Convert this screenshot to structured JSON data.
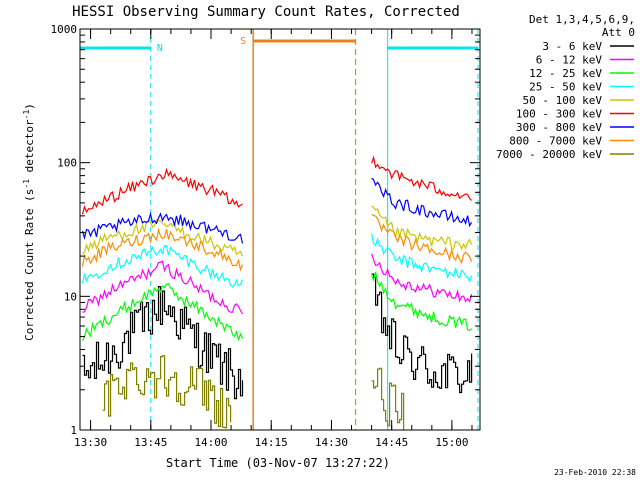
{
  "colors": {
    "background": "#ffffff",
    "axes": "#000000",
    "night_marker": "#00e5ee",
    "saa_marker": "#e8841a"
  },
  "chart_data": {
    "type": "line",
    "title": "HESSI Observing Summary Count Rates, Corrected",
    "xlabel": "Start Time (03-Nov-07 13:27:22)",
    "ylabel": "Corrected Count Rate (s",
    "ylabel_sup": "-1",
    "ylabel_mid": " detector",
    "ylabel_sup2": "-1",
    "ylabel_end": ")",
    "yscale": "log",
    "xlim": [
      "13:27:22",
      "15:07:00"
    ],
    "ylim": [
      1,
      1000
    ],
    "xticks": [
      "13:30",
      "13:45",
      "14:00",
      "14:15",
      "14:30",
      "14:45",
      "15:00"
    ],
    "yticks": [
      "1",
      "10",
      "100",
      "1000"
    ],
    "legend_title": "Det 1,3,4,5,6,9,",
    "legend_subtitle": "Att 0",
    "legend_position": "right",
    "timestamp": "23-Feb-2010 22:38",
    "annotations": {
      "night_label": "N",
      "saa_label": "S",
      "night_intervals": [
        [
          "13:27:22",
          "13:45:00"
        ],
        [
          "14:44:00",
          "15:06:30"
        ]
      ],
      "saa_interval": [
        "14:10:30",
        "14:36:00"
      ],
      "data_gap": [
        "14:09:30",
        "14:40:00"
      ]
    },
    "series": [
      {
        "name": "3 - 6 keV",
        "color": "#000000",
        "segments": [
          {
            "t": [
              "13:28",
              "13:35",
              "13:48",
              "14:00",
              "14:08"
            ],
            "v": [
              2.5,
              3.7,
              9,
              3.5,
              2.2
            ]
          },
          {
            "t": [
              "14:40",
              "14:46",
              "14:55",
              "15:05"
            ],
            "v": [
              10,
              4,
              2.7,
              2.5
            ]
          }
        ]
      },
      {
        "name": "6 - 12 keV",
        "color": "#ff00ff",
        "segments": [
          {
            "t": [
              "13:28",
              "13:35",
              "13:48",
              "14:00",
              "14:08"
            ],
            "v": [
              8,
              11,
              17,
              10,
              7.5
            ]
          },
          {
            "t": [
              "14:40",
              "14:46",
              "14:55",
              "15:05"
            ],
            "v": [
              20,
              13,
              11,
              9.5
            ]
          }
        ]
      },
      {
        "name": "12 - 25 keV",
        "color": "#00ff00",
        "segments": [
          {
            "t": [
              "13:28",
              "13:35",
              "13:48",
              "14:00",
              "14:08"
            ],
            "v": [
              5,
              7,
              12,
              7,
              4.7
            ]
          },
          {
            "t": [
              "14:40",
              "14:46",
              "14:55",
              "15:05"
            ],
            "v": [
              15,
              9,
              7,
              6
            ]
          }
        ]
      },
      {
        "name": "25 - 50 keV",
        "color": "#00ffff",
        "segments": [
          {
            "t": [
              "13:28",
              "13:35",
              "13:48",
              "14:00",
              "14:08"
            ],
            "v": [
              13,
              17,
              23,
              15,
              12
            ]
          },
          {
            "t": [
              "14:40",
              "14:46",
              "14:55",
              "15:05"
            ],
            "v": [
              27,
              19,
              16,
              14
            ]
          }
        ]
      },
      {
        "name": "50 - 100 keV",
        "color": "#c8c800",
        "segments": [
          {
            "t": [
              "13:28",
              "13:35",
              "13:48",
              "14:00",
              "14:08"
            ],
            "v": [
              22,
              28,
              35,
              25,
              20
            ]
          },
          {
            "t": [
              "14:40",
              "14:46",
              "14:55",
              "15:05"
            ],
            "v": [
              45,
              30,
              26,
              24
            ]
          }
        ]
      },
      {
        "name": "100 - 300 keV",
        "color": "#ff0000",
        "segments": [
          {
            "t": [
              "13:28",
              "13:35",
              "13:48",
              "14:00",
              "14:08"
            ],
            "v": [
              42,
              55,
              82,
              62,
              46
            ]
          },
          {
            "t": [
              "14:40",
              "14:46",
              "14:55",
              "15:05"
            ],
            "v": [
              108,
              80,
              65,
              55
            ]
          }
        ]
      },
      {
        "name": "300 - 800 keV",
        "color": "#0000ff",
        "segments": [
          {
            "t": [
              "13:28",
              "13:35",
              "13:48",
              "14:00",
              "14:08"
            ],
            "v": [
              28,
              33,
              40,
              32,
              27
            ]
          },
          {
            "t": [
              "14:40",
              "14:46",
              "14:55",
              "15:05"
            ],
            "v": [
              70,
              50,
              42,
              36
            ]
          }
        ]
      },
      {
        "name": "800 - 7000 keV",
        "color": "#ff8c00",
        "segments": [
          {
            "t": [
              "13:28",
              "13:35",
              "13:48",
              "14:00",
              "14:08"
            ],
            "v": [
              18,
              23,
              30,
              22,
              17
            ]
          },
          {
            "t": [
              "14:40",
              "14:46",
              "14:55",
              "15:05"
            ],
            "v": [
              38,
              27,
              22,
              19
            ]
          }
        ]
      },
      {
        "name": "7000 - 20000 keV",
        "color": "#808000",
        "segments": [
          {
            "t": [
              "13:33",
              "13:38",
              "13:48",
              "13:58",
              "14:05"
            ],
            "v": [
              1.5,
              2.5,
              2.6,
              2,
              1.3
            ]
          },
          {
            "t": [
              "14:40",
              "14:44",
              "14:48"
            ],
            "v": [
              2.5,
              1.6,
              1.2
            ]
          }
        ]
      }
    ]
  }
}
